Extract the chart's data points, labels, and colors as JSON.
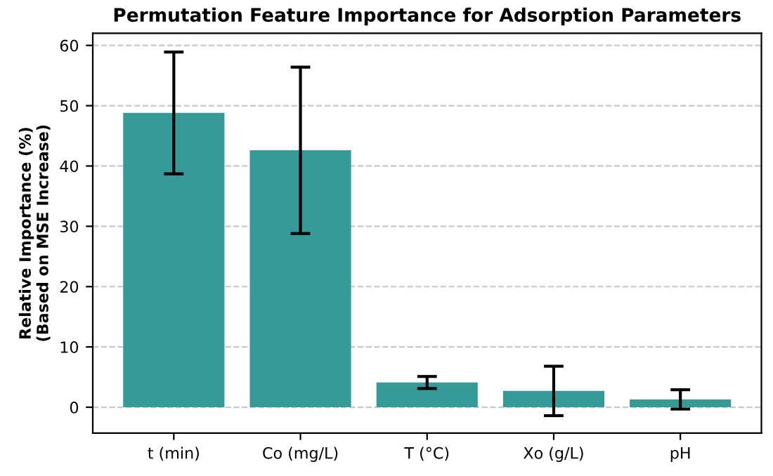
{
  "chart_data": {
    "type": "bar",
    "title": "Permutation Feature Importance for Adsorption Parameters",
    "ylabel": "Relative Importance (%)\n(Based on MSE Increase)",
    "categories": [
      "t (min)",
      "Co (mg/L)",
      "T (°C)",
      "Xo (g/L)",
      "pH"
    ],
    "values": [
      48.8,
      42.6,
      4.1,
      2.7,
      1.3
    ],
    "errors": [
      10.1,
      13.8,
      1.0,
      4.1,
      1.6
    ],
    "color": "#369b98",
    "ylim": [
      -4.3,
      62
    ],
    "yticks": [
      0,
      10,
      20,
      30,
      40,
      50,
      60
    ],
    "grid": "y"
  }
}
